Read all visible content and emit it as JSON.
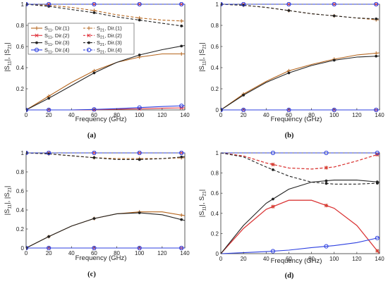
{
  "figure": {
    "legend_entries": [
      {
        "series": "S11 Dir.(1)",
        "pre": "S",
        "sub": "11",
        "post": ", Dir.(1)",
        "color": "#b5651d",
        "dash": false,
        "marker": "plus"
      },
      {
        "series": "S21 Dir.(1)",
        "pre": "S",
        "sub": "21",
        "post": ", Dir.(1)",
        "color": "#b5651d",
        "dash": true,
        "marker": "plus"
      },
      {
        "series": "S11 Dir.(2)",
        "pre": "S",
        "sub": "11",
        "post": ", Dir.(2)",
        "color": "#e0303a",
        "dash": false,
        "marker": "x"
      },
      {
        "series": "S21 Dir.(2)",
        "pre": "S",
        "sub": "21",
        "post": ", Dir.(2)",
        "color": "#e0303a",
        "dash": true,
        "marker": "x"
      },
      {
        "series": "S11 Dir.(3)",
        "pre": "S",
        "sub": "11",
        "post": ", Dir.(3)",
        "color": "#222222",
        "dash": false,
        "marker": "dot"
      },
      {
        "series": "S21 Dir.(3)",
        "pre": "S",
        "sub": "21",
        "post": ", Dir.(3)",
        "color": "#222222",
        "dash": true,
        "marker": "dot"
      },
      {
        "series": "S11 Dir.(4)",
        "pre": "S",
        "sub": "11",
        "post": ", Dir.(4)",
        "color": "#2c3fe0",
        "dash": false,
        "marker": "circle"
      },
      {
        "series": "S21 Dir.(4)",
        "pre": "S",
        "sub": "21",
        "post": ", Dir.(4)",
        "color": "#2c3fe0",
        "dash": true,
        "marker": "circle"
      }
    ]
  },
  "chart_data": [
    {
      "type": "line",
      "panel": "(a)",
      "xlabel": "Frequency (GHz)",
      "ylabel": "|S11|, |S21|",
      "xlim": [
        0,
        140
      ],
      "ylim": [
        0,
        1
      ],
      "xticks": [
        "0",
        "20",
        "40",
        "60",
        "80",
        "100",
        "120",
        "140"
      ],
      "yticks": [
        "0.2",
        "0.4",
        "0.6",
        "0.8",
        "1"
      ],
      "legend": "top-left",
      "series": [
        {
          "name": "S11 Dir.(1)",
          "x": [
            0,
            20,
            40,
            60,
            80,
            100,
            120,
            140
          ],
          "y": [
            0,
            0.13,
            0.26,
            0.37,
            0.45,
            0.5,
            0.53,
            0.53
          ]
        },
        {
          "name": "S21 Dir.(1)",
          "x": [
            0,
            20,
            40,
            60,
            80,
            100,
            120,
            140
          ],
          "y": [
            1,
            0.99,
            0.97,
            0.94,
            0.9,
            0.87,
            0.85,
            0.84
          ]
        },
        {
          "name": "S11 Dir.(2)",
          "x": [
            0,
            20,
            40,
            60,
            80,
            100,
            120,
            140
          ],
          "y": [
            0,
            0,
            0,
            0.002,
            0.006,
            0.01,
            0.016,
            0.02
          ]
        },
        {
          "name": "S21 Dir.(2)",
          "x": [
            0,
            20,
            40,
            60,
            80,
            100,
            120,
            140
          ],
          "y": [
            1,
            1,
            1,
            1,
            1,
            1,
            1,
            1
          ]
        },
        {
          "name": "S11 Dir.(3)",
          "x": [
            0,
            20,
            40,
            60,
            80,
            100,
            120,
            140
          ],
          "y": [
            0,
            0.11,
            0.23,
            0.35,
            0.45,
            0.52,
            0.57,
            0.61
          ]
        },
        {
          "name": "S21 Dir.(3)",
          "x": [
            0,
            20,
            40,
            60,
            80,
            100,
            120,
            140
          ],
          "y": [
            1,
            0.98,
            0.95,
            0.92,
            0.88,
            0.85,
            0.82,
            0.79
          ]
        },
        {
          "name": "S11 Dir.(4)",
          "x": [
            0,
            20,
            40,
            60,
            80,
            100,
            120,
            140
          ],
          "y": [
            0,
            0,
            0,
            0.005,
            0.012,
            0.022,
            0.032,
            0.04
          ]
        },
        {
          "name": "S21 Dir.(4)",
          "x": [
            0,
            20,
            40,
            60,
            80,
            100,
            120,
            140
          ],
          "y": [
            1,
            1,
            1,
            1,
            1,
            1,
            1,
            1
          ]
        }
      ]
    },
    {
      "type": "line",
      "panel": "(b)",
      "xlabel": "Frequency (GHz)",
      "ylabel": "|S11|, |S21|",
      "xlim": [
        0,
        140
      ],
      "ylim": [
        0,
        1
      ],
      "xticks": [
        "0",
        "20",
        "40",
        "60",
        "80",
        "100",
        "120",
        "140"
      ],
      "yticks": [
        "0",
        "0.2",
        "0.4",
        "0.6",
        "0.8",
        "1"
      ],
      "series": [
        {
          "name": "S11 Dir.(1)",
          "x": [
            0,
            20,
            40,
            60,
            80,
            100,
            120,
            140
          ],
          "y": [
            0,
            0.15,
            0.27,
            0.37,
            0.43,
            0.48,
            0.52,
            0.54
          ]
        },
        {
          "name": "S21 Dir.(1)",
          "x": [
            0,
            20,
            40,
            60,
            80,
            100,
            120,
            140
          ],
          "y": [
            1,
            0.99,
            0.97,
            0.94,
            0.91,
            0.89,
            0.87,
            0.85
          ]
        },
        {
          "name": "S11 Dir.(2)",
          "x": [
            0,
            20,
            40,
            60,
            80,
            100,
            120,
            140
          ],
          "y": [
            0,
            0,
            0,
            0,
            0,
            0,
            0,
            0
          ]
        },
        {
          "name": "S21 Dir.(2)",
          "x": [
            0,
            20,
            40,
            60,
            80,
            100,
            120,
            140
          ],
          "y": [
            1,
            1,
            1,
            1,
            1,
            1,
            1,
            1
          ]
        },
        {
          "name": "S11 Dir.(3)",
          "x": [
            0,
            20,
            40,
            60,
            80,
            100,
            120,
            140
          ],
          "y": [
            0,
            0.14,
            0.26,
            0.35,
            0.42,
            0.47,
            0.5,
            0.51
          ]
        },
        {
          "name": "S21 Dir.(3)",
          "x": [
            0,
            20,
            40,
            60,
            80,
            100,
            120,
            140
          ],
          "y": [
            1,
            0.99,
            0.97,
            0.94,
            0.91,
            0.89,
            0.87,
            0.86
          ]
        },
        {
          "name": "S11 Dir.(4)",
          "x": [
            0,
            20,
            40,
            60,
            80,
            100,
            120,
            140
          ],
          "y": [
            0,
            0,
            0,
            0,
            0,
            0,
            0,
            0
          ]
        },
        {
          "name": "S21 Dir.(4)",
          "x": [
            0,
            20,
            40,
            60,
            80,
            100,
            120,
            140
          ],
          "y": [
            1,
            1,
            1,
            1,
            1,
            1,
            1,
            1
          ]
        }
      ]
    },
    {
      "type": "line",
      "panel": "(c)",
      "xlabel": "Frequency (GHz)",
      "ylabel": "|S11|, |S21|",
      "xlim": [
        0,
        140
      ],
      "ylim": [
        0,
        1
      ],
      "xticks": [
        "0",
        "20",
        "40",
        "60",
        "80",
        "100",
        "120",
        "140"
      ],
      "yticks": [
        "0",
        "0.2",
        "0.4",
        "0.6",
        "0.8",
        "1"
      ],
      "series": [
        {
          "name": "S11 Dir.(1)",
          "x": [
            0,
            20,
            40,
            60,
            80,
            100,
            120,
            140
          ],
          "y": [
            0,
            0.12,
            0.23,
            0.31,
            0.36,
            0.38,
            0.38,
            0.34
          ]
        },
        {
          "name": "S21 Dir.(1)",
          "x": [
            0,
            20,
            40,
            60,
            80,
            100,
            120,
            140
          ],
          "y": [
            1,
            0.99,
            0.97,
            0.95,
            0.94,
            0.94,
            0.94,
            0.95
          ]
        },
        {
          "name": "S11 Dir.(2)",
          "x": [
            0,
            20,
            40,
            60,
            80,
            100,
            120,
            140
          ],
          "y": [
            0,
            0,
            0,
            0,
            0,
            0,
            0,
            0
          ]
        },
        {
          "name": "S21 Dir.(2)",
          "x": [
            0,
            20,
            40,
            60,
            80,
            100,
            120,
            140
          ],
          "y": [
            1,
            1,
            1,
            1,
            1,
            1,
            1,
            1
          ]
        },
        {
          "name": "S11 Dir.(3)",
          "x": [
            0,
            20,
            40,
            60,
            80,
            100,
            120,
            140
          ],
          "y": [
            0,
            0.12,
            0.23,
            0.31,
            0.36,
            0.37,
            0.35,
            0.29
          ]
        },
        {
          "name": "S21 Dir.(3)",
          "x": [
            0,
            20,
            40,
            60,
            80,
            100,
            120,
            140
          ],
          "y": [
            1,
            0.99,
            0.97,
            0.95,
            0.93,
            0.93,
            0.94,
            0.96
          ]
        },
        {
          "name": "S11 Dir.(4)",
          "x": [
            0,
            20,
            40,
            60,
            80,
            100,
            120,
            140
          ],
          "y": [
            0,
            0,
            0,
            0,
            0,
            0,
            0,
            0
          ]
        },
        {
          "name": "S21 Dir.(4)",
          "x": [
            0,
            20,
            40,
            60,
            80,
            100,
            120,
            140
          ],
          "y": [
            1,
            1,
            1,
            1,
            1,
            1,
            1,
            1
          ]
        }
      ]
    },
    {
      "type": "line",
      "panel": "(d)",
      "xlabel": "Frequency (GHz)",
      "ylabel": "|S11|, S21|",
      "xlim": [
        0,
        140
      ],
      "ylim": [
        0,
        1
      ],
      "xticks": [
        "0",
        "20",
        "40",
        "60",
        "80",
        "100",
        "120",
        "140"
      ],
      "yticks": [
        "0",
        "0.2",
        "0.4",
        "0.6",
        "0.8",
        "1"
      ],
      "series": [
        {
          "name": "S11 Dir.(1)",
          "x": [
            0,
            20,
            40,
            60,
            80,
            100,
            120,
            140
          ],
          "y": [
            0,
            0.25,
            0.44,
            0.53,
            0.53,
            0.45,
            0.28,
            0
          ]
        },
        {
          "name": "S21 Dir.(1)",
          "x": [
            0,
            20,
            40,
            60,
            80,
            100,
            120,
            140
          ],
          "y": [
            1,
            0.97,
            0.9,
            0.85,
            0.84,
            0.86,
            0.92,
            0.99
          ]
        },
        {
          "name": "S11 Dir.(2)",
          "x": [
            0,
            20,
            40,
            60,
            80,
            100,
            120,
            140
          ],
          "y": [
            0,
            0.25,
            0.44,
            0.53,
            0.53,
            0.45,
            0.28,
            0
          ]
        },
        {
          "name": "S21 Dir.(2)",
          "x": [
            0,
            20,
            40,
            60,
            80,
            100,
            120,
            140
          ],
          "y": [
            1,
            0.97,
            0.9,
            0.85,
            0.84,
            0.86,
            0.92,
            0.99
          ]
        },
        {
          "name": "S11 Dir.(3)",
          "x": [
            0,
            20,
            40,
            60,
            80,
            100,
            120,
            140
          ],
          "y": [
            0,
            0.28,
            0.5,
            0.64,
            0.71,
            0.73,
            0.73,
            0.71
          ]
        },
        {
          "name": "S21 Dir.(3)",
          "x": [
            0,
            20,
            40,
            60,
            80,
            100,
            120,
            140
          ],
          "y": [
            1,
            0.96,
            0.86,
            0.77,
            0.71,
            0.69,
            0.69,
            0.7
          ]
        },
        {
          "name": "S11 Dir.(4)",
          "x": [
            0,
            20,
            40,
            60,
            80,
            100,
            120,
            140
          ],
          "y": [
            0,
            0.01,
            0.02,
            0.035,
            0.06,
            0.08,
            0.11,
            0.16
          ]
        },
        {
          "name": "S21 Dir.(4)",
          "x": [
            0,
            20,
            40,
            60,
            80,
            100,
            120,
            140
          ],
          "y": [
            1,
            1,
            1,
            1,
            1,
            1,
            1,
            1
          ]
        }
      ]
    }
  ]
}
